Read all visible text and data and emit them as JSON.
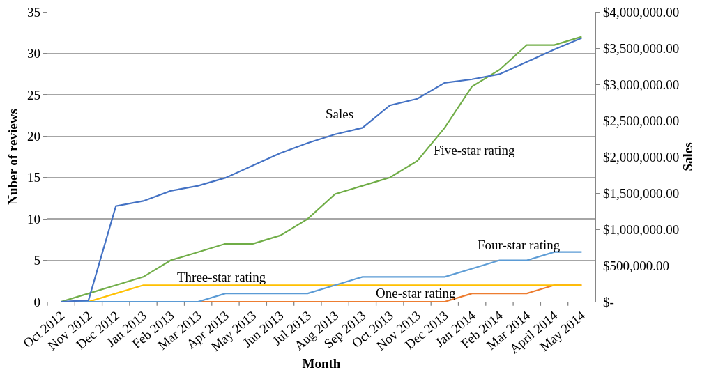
{
  "chart_data": {
    "type": "line",
    "xlabel": "Month",
    "ylabel": "Nuber of reviews",
    "y2label": "Sales",
    "categories": [
      "Oct 2012",
      "Nov 2012",
      "Dec 2012",
      "Jan 2013",
      "Feb 2013",
      "Mar 2013",
      "Apr 2013",
      "May 2013",
      "Jun 2013",
      "Jul 2013",
      "Aug 2013",
      "Sep 2013",
      "Oct 2013",
      "Nov 2013",
      "Dec 2013",
      "Jan 2014",
      "Feb 2014",
      "Mar 2014",
      "April 2014",
      "May 2014"
    ],
    "series": [
      {
        "name": "One-star rating",
        "color": "#ed7d31",
        "values": [
          null,
          null,
          null,
          null,
          null,
          0,
          0,
          0,
          0,
          0,
          0,
          0,
          0,
          0,
          0,
          1,
          1,
          1,
          2,
          2
        ]
      },
      {
        "name": "Three-star rating",
        "color": "#ffc000",
        "values": [
          0,
          0,
          1,
          2,
          2,
          2,
          2,
          2,
          2,
          2,
          2,
          2,
          2,
          2,
          2,
          2,
          2,
          2,
          2,
          2
        ]
      },
      {
        "name": "Four-star rating",
        "color": "#5b9bd5",
        "values": [
          0,
          0,
          0,
          0,
          0,
          0,
          1,
          1,
          1,
          1,
          2,
          3,
          3,
          3,
          3,
          4,
          5,
          5,
          6,
          6
        ]
      },
      {
        "name": "Five-star rating",
        "color": "#70ad47",
        "values": [
          0,
          1,
          2,
          3,
          5,
          6,
          7,
          7,
          8,
          10,
          13,
          14,
          15,
          17,
          21,
          26,
          28,
          31,
          31,
          32
        ]
      },
      {
        "name": "Sales",
        "color": "#4472c4",
        "axis": "y2",
        "values": [
          0,
          20000,
          1320000,
          1390000,
          1530000,
          1600000,
          1710000,
          1880000,
          2050000,
          2190000,
          2310000,
          2400000,
          2710000,
          2800000,
          3020000,
          3070000,
          3140000,
          3310000,
          3480000,
          3640000
        ]
      }
    ],
    "ylim": [
      0,
      35
    ],
    "yticks": [
      0,
      5,
      10,
      15,
      20,
      25,
      30,
      35
    ],
    "y2lim": [
      0,
      4000000
    ],
    "y2ticks": [
      {
        "value": 0,
        "label": "$-"
      },
      {
        "value": 500000,
        "label": "$500,000.00"
      },
      {
        "value": 1000000,
        "label": "$1,000,000.00"
      },
      {
        "value": 1500000,
        "label": "$1,500,000.00"
      },
      {
        "value": 2000000,
        "label": "$2,000,000.00"
      },
      {
        "value": 2500000,
        "label": "$2,500,000.00"
      },
      {
        "value": 3000000,
        "label": "$3,000,000.00"
      },
      {
        "value": 3500000,
        "label": "$3,500,000.00"
      },
      {
        "value": 4000000,
        "label": "$4,000,000.00"
      }
    ],
    "grid": "y"
  }
}
